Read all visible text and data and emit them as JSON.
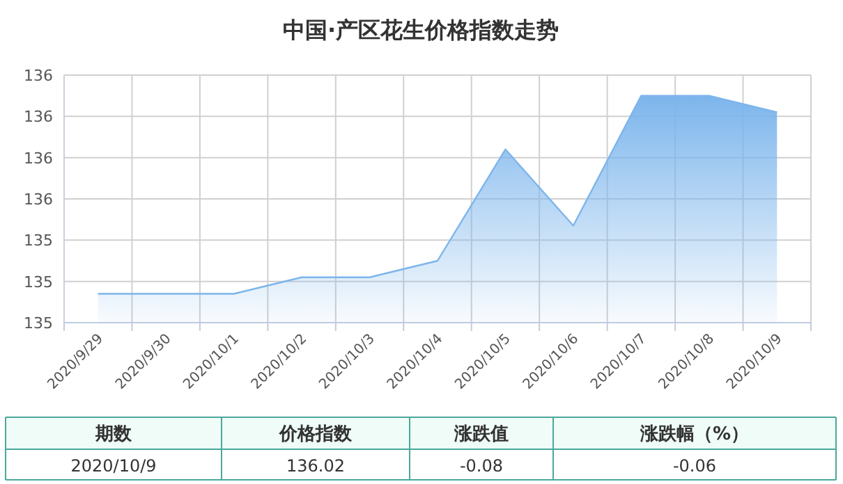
{
  "chart_data": {
    "type": "area",
    "title": "中国·产区花生价格指数走势",
    "categories": [
      "2020/9/29",
      "2020/9/30",
      "2020/10/1",
      "2020/10/2",
      "2020/10/3",
      "2020/10/4",
      "2020/10/5",
      "2020/10/6",
      "2020/10/7",
      "2020/10/8",
      "2020/10/9"
    ],
    "series": [
      {
        "color": "#7cb5ec",
        "values": [
          135.14,
          135.14,
          135.14,
          135.22,
          135.22,
          135.3,
          135.84,
          135.47,
          136.1,
          136.1,
          136.02
        ]
      }
    ],
    "ylim": [
      135.0,
      136.2
    ],
    "yticks": [
      {
        "value": 135.0,
        "label": "135"
      },
      {
        "value": 135.2,
        "label": "135"
      },
      {
        "value": 135.4,
        "label": "135"
      },
      {
        "value": 135.6,
        "label": "136"
      },
      {
        "value": 135.8,
        "label": "136"
      },
      {
        "value": 136.0,
        "label": "136"
      },
      {
        "value": 136.2,
        "label": "136"
      }
    ],
    "grid": true,
    "marker": "none",
    "line_style": "solid",
    "annotations": [
      "期数",
      "价格指数",
      "涨跌值",
      "涨跌幅（%）",
      "2020/10/9",
      "136.02",
      "-0.08",
      "-0.06"
    ]
  }
}
